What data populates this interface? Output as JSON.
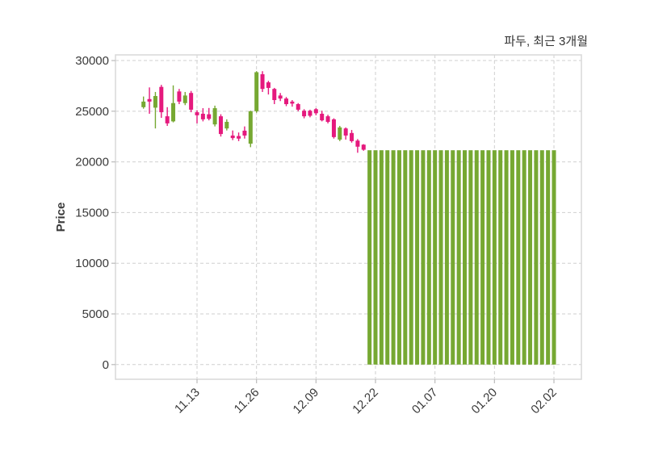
{
  "header": {
    "title": "파두, 최근 3개월"
  },
  "chart_data": {
    "type": "candlestick",
    "title": "파두, 최근 3개월",
    "xlabel": "",
    "ylabel": "Price",
    "ylim": [
      -1450,
      30560
    ],
    "yticks": [
      0,
      5000,
      10000,
      15000,
      20000,
      25000,
      30000
    ],
    "xtick_indices": [
      9,
      19,
      29,
      39,
      49,
      59,
      69
    ],
    "xtick_labels": [
      "11.13",
      "11.26",
      "12.09",
      "12.22",
      "01.07",
      "01.20",
      "02.02"
    ],
    "grid": "dashed-both-axes",
    "legend": "none",
    "colors": {
      "up": "#76A832",
      "down": "#E5197D",
      "grid": "#CFCFCF",
      "border": "#D8D8D8",
      "tick": "#BBBBBB",
      "text": "#3A3A3A",
      "title_text": "#333333",
      "background": "#FFFFFF"
    },
    "candles_format": [
      "open",
      "high",
      "low",
      "close"
    ],
    "candles": [
      [
        25400,
        26450,
        25250,
        25950
      ],
      [
        26200,
        27350,
        24750,
        25950
      ],
      [
        25350,
        26900,
        23300,
        26500
      ],
      [
        27400,
        27600,
        24350,
        24900
      ],
      [
        24500,
        25400,
        23550,
        23800
      ],
      [
        24000,
        27550,
        23900,
        25800
      ],
      [
        26950,
        27200,
        25700,
        25950
      ],
      [
        25800,
        26900,
        25600,
        26550
      ],
      [
        26800,
        27000,
        24900,
        25150
      ],
      [
        24900,
        25100,
        23800,
        24600
      ],
      [
        24750,
        25300,
        24000,
        24200
      ],
      [
        24700,
        25320,
        24100,
        24250
      ],
      [
        23700,
        25550,
        23500,
        25300
      ],
      [
        24500,
        24700,
        22500,
        22750
      ],
      [
        23300,
        24200,
        23100,
        23950
      ],
      [
        22600,
        23100,
        22150,
        22350
      ],
      [
        22550,
        22900,
        22050,
        22300
      ],
      [
        23080,
        23500,
        22300,
        22600
      ],
      [
        21800,
        25050,
        21450,
        25000
      ],
      [
        25000,
        28950,
        24850,
        28850
      ],
      [
        28650,
        28950,
        26900,
        27200
      ],
      [
        27850,
        28000,
        26650,
        27300
      ],
      [
        27200,
        27300,
        25700,
        26100
      ],
      [
        26550,
        26800,
        26000,
        26250
      ],
      [
        26250,
        26400,
        25500,
        25700
      ],
      [
        25950,
        26100,
        25450,
        25750
      ],
      [
        25700,
        25800,
        25000,
        25150
      ],
      [
        25050,
        25200,
        24300,
        24500
      ],
      [
        25050,
        25150,
        24400,
        24550
      ],
      [
        25200,
        25300,
        24600,
        24800
      ],
      [
        24750,
        25050,
        24000,
        24100
      ],
      [
        24500,
        24650,
        23800,
        23950
      ],
      [
        24200,
        24300,
        22300,
        22450
      ],
      [
        22200,
        23550,
        22050,
        23400
      ],
      [
        23300,
        23400,
        22200,
        22600
      ],
      [
        22850,
        23150,
        21900,
        22050
      ],
      [
        22100,
        22250,
        20900,
        21500
      ],
      [
        21700,
        21750,
        21100,
        21200
      ],
      [
        0,
        21150,
        0,
        21150
      ],
      [
        0,
        21150,
        0,
        21150
      ],
      [
        0,
        21150,
        0,
        21150
      ],
      [
        0,
        21150,
        0,
        21150
      ],
      [
        0,
        21150,
        0,
        21150
      ],
      [
        0,
        21150,
        0,
        21150
      ],
      [
        0,
        21150,
        0,
        21150
      ],
      [
        0,
        21150,
        0,
        21150
      ],
      [
        0,
        21150,
        0,
        21150
      ],
      [
        0,
        21150,
        0,
        21150
      ],
      [
        0,
        21150,
        0,
        21150
      ],
      [
        0,
        21150,
        0,
        21150
      ],
      [
        0,
        21150,
        0,
        21150
      ],
      [
        0,
        21150,
        0,
        21150
      ],
      [
        0,
        21150,
        0,
        21150
      ],
      [
        0,
        21150,
        0,
        21150
      ],
      [
        0,
        21150,
        0,
        21150
      ],
      [
        0,
        21150,
        0,
        21150
      ],
      [
        0,
        21150,
        0,
        21150
      ],
      [
        0,
        21150,
        0,
        21150
      ],
      [
        0,
        21150,
        0,
        21150
      ],
      [
        0,
        21150,
        0,
        21150
      ],
      [
        0,
        21150,
        0,
        21150
      ],
      [
        0,
        21150,
        0,
        21150
      ],
      [
        0,
        21150,
        0,
        21150
      ],
      [
        0,
        21150,
        0,
        21150
      ],
      [
        0,
        21150,
        0,
        21150
      ],
      [
        0,
        21150,
        0,
        21150
      ],
      [
        0,
        21150,
        0,
        21150
      ],
      [
        0,
        21150,
        0,
        21150
      ],
      [
        0,
        21150,
        0,
        21150
      ],
      [
        0,
        21150,
        0,
        21150
      ]
    ]
  }
}
